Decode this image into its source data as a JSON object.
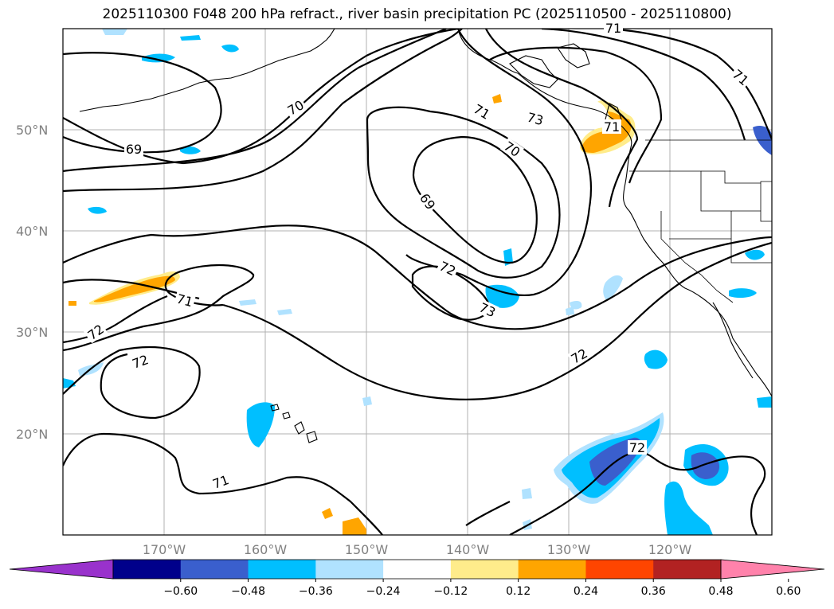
{
  "title": "2025110300 F048 200 hPa refract., river basin precipitation PC (2025110500 - 2025110800)",
  "map": {
    "lat_labels": [
      "50°N",
      "40°N",
      "30°N",
      "20°N"
    ],
    "lon_labels": [
      "170°W",
      "160°W",
      "150°W",
      "140°W",
      "130°W",
      "120°W"
    ]
  },
  "contour_labels": [
    "69",
    "70",
    "71",
    "72",
    "73",
    "69",
    "70",
    "71",
    "72",
    "73",
    "71",
    "72",
    "72",
    "71",
    "72",
    "71",
    "71"
  ],
  "colorbar": {
    "colors": [
      "#9932cc",
      "#00008b",
      "#3a5fcd",
      "#00bfff",
      "#b0e2ff",
      "#ffffff",
      "#ffec8b",
      "#ffa500",
      "#ff4500",
      "#b22222",
      "#ff82ab"
    ],
    "tick_labels": [
      "−0.60",
      "−0.48",
      "−0.36",
      "−0.24",
      "−0.12",
      "0.12",
      "0.24",
      "0.36",
      "0.48",
      "0.60"
    ]
  }
}
